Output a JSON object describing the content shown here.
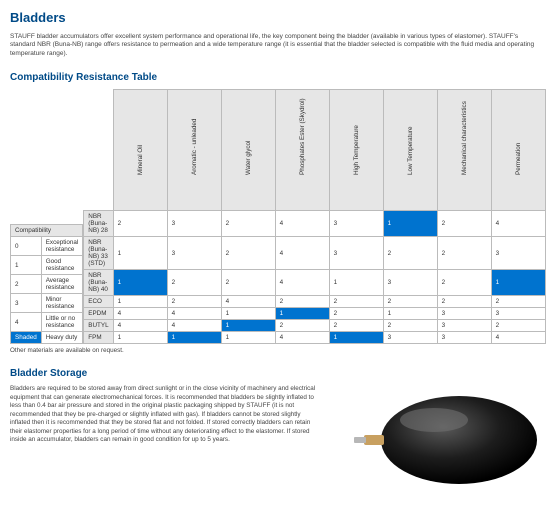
{
  "title": "Bladders",
  "intro": "STAUFF bladder accumulators offer excellent system performance and operational life, the key component being the bladder (available in various types of elastomer). STAUFF's standard NBR (Buna-NB) range offers resistance to permeation and a wide temperature range (it is essential that the bladder selected is compatible with the fluid media and operating temperature range).",
  "table_heading": "Compatibility Resistance Table",
  "legend_header": "Compatibility",
  "legend_rows": [
    {
      "k": "0",
      "v": "Exceptional resistance"
    },
    {
      "k": "1",
      "v": "Good resistance"
    },
    {
      "k": "2",
      "v": "Average resistance"
    },
    {
      "k": "3",
      "v": "Minor resistance"
    },
    {
      "k": "4",
      "v": "Little or no resistance"
    },
    {
      "k": "Shaded",
      "v": "Heavy duty",
      "shaded": true
    }
  ],
  "columns": [
    "Mineral Oil",
    "Aromatic - unleaded",
    "Water glycol",
    "Phosphates Ester (Skydrol)",
    "High Temperature",
    "Low Temperature",
    "Mechanical characteristics",
    "Permeation"
  ],
  "rows": [
    {
      "mat": "NBR (Buna-NB) 28",
      "v": [
        "2",
        "3",
        "2",
        "4",
        "3",
        "1*",
        "2",
        "4"
      ]
    },
    {
      "mat": "NBR (Buna-NB) 33 (STD)",
      "v": [
        "1",
        "3",
        "2",
        "4",
        "3",
        "2",
        "2",
        "3"
      ]
    },
    {
      "mat": "NBR (Buna-NB) 40",
      "v": [
        "1*",
        "2",
        "2",
        "4",
        "1",
        "3",
        "2",
        "1*"
      ]
    },
    {
      "mat": "ECO",
      "v": [
        "1",
        "2",
        "4",
        "2",
        "2",
        "2",
        "2",
        "2"
      ]
    },
    {
      "mat": "EPDM",
      "v": [
        "4",
        "4",
        "1",
        "1*",
        "2",
        "1",
        "3",
        "3"
      ]
    },
    {
      "mat": "BUTYL",
      "v": [
        "4",
        "4",
        "1*",
        "2",
        "2",
        "2",
        "3",
        "2"
      ]
    },
    {
      "mat": "FPM",
      "v": [
        "1",
        "1*",
        "1",
        "4",
        "1*",
        "3",
        "3",
        "4"
      ]
    }
  ],
  "footnote": "Other materials are available on request.",
  "storage_heading": "Bladder Storage",
  "storage_text": "Bladders are required to be stored away from direct sunlight or in the close vicinity of machinery and electrical equipment that can generate electromechanical forces. It is recommended that bladders be slightly inflated to less than 0.4 bar air pressure and stored in the original plastic packaging shipped by STAUFF (it is not recommended that they be pre-charged or slightly inflated with gas). If bladders cannot be stored slightly inflated then it is recommended that they be stored flat and not folded. If stored correctly bladders can retain their elastomer properties for a long period of time without any deteriorating effect to the elastomer. If stored inside an accumulator, bladders can remain in good condition for up to 5 years.",
  "colors": {
    "heading": "#004a87",
    "accent": "#0073cf",
    "header_bg": "#e6e6e6",
    "border": "#bbbbbb",
    "text": "#333333"
  }
}
